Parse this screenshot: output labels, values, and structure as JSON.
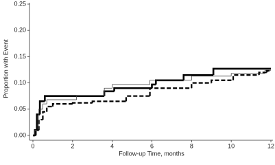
{
  "chart_data": {
    "type": "line",
    "step": "post",
    "x_label": "Follow-up Time, months",
    "y_label": "Proportion with Event",
    "xlim": [
      0,
      12
    ],
    "xticks": [
      0,
      2,
      4,
      6,
      8,
      10,
      12
    ],
    "ylim": [
      0,
      0.25
    ],
    "yticks": [
      {
        "value": 0,
        "label": "0.00"
      },
      {
        "value": 0.05,
        "label": "0.05"
      },
      {
        "value": 0.1,
        "label": "0.10"
      },
      {
        "value": 0.15,
        "label": "0.15"
      },
      {
        "value": 0.2,
        "label": "0.20"
      },
      {
        "value": 0.25,
        "label": "0.25"
      }
    ],
    "series": [
      {
        "color": "#000000",
        "line_width": 2.6,
        "dash": "none",
        "x": [
          0,
          0.1,
          0.2,
          0.35,
          0.6,
          3.6,
          4.1,
          6.0,
          6.2,
          7.6,
          9.1,
          12
        ],
        "values": [
          0,
          0.01,
          0.04,
          0.065,
          0.075,
          0.084,
          0.09,
          0.097,
          0.105,
          0.115,
          0.127,
          0.127
        ]
      },
      {
        "color": "#444444",
        "line_width": 0.8,
        "dash": "none",
        "x": [
          0,
          0.1,
          0.3,
          0.5,
          0.7,
          2.2,
          3.6,
          4.0,
          5.9,
          8.0,
          10.0,
          11.7,
          12
        ],
        "values": [
          0,
          0.01,
          0.05,
          0.06,
          0.068,
          0.075,
          0.09,
          0.097,
          0.105,
          0.113,
          0.118,
          0.124,
          0.124
        ]
      },
      {
        "color": "#000000",
        "line_width": 2.2,
        "dash": "6,3",
        "x": [
          0,
          0.15,
          0.3,
          0.5,
          0.7,
          1.0,
          2.0,
          3.0,
          4.7,
          5.9,
          8.0,
          9.0,
          10.1,
          11.4,
          11.8,
          12
        ],
        "values": [
          0,
          0.01,
          0.03,
          0.045,
          0.055,
          0.06,
          0.062,
          0.065,
          0.075,
          0.09,
          0.1,
          0.105,
          0.115,
          0.12,
          0.123,
          0.123
        ]
      }
    ]
  }
}
